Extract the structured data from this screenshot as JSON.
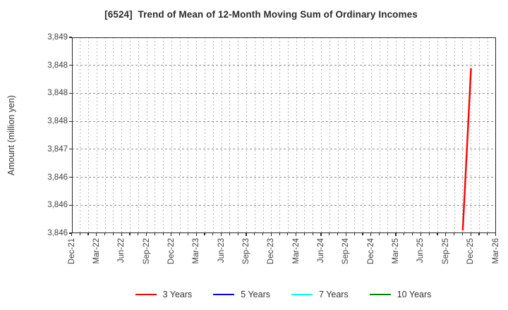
{
  "chart_data": {
    "type": "line",
    "title": "[6524]  Trend of Mean of 12-Month Moving Sum of Ordinary Incomes",
    "ylabel": "Amount (million yen)",
    "xlabel": "",
    "y_axis": {
      "min": 3845.5,
      "max": 3849.0,
      "tick_step": 0.5,
      "unit": "million yen"
    },
    "y_tick_labels": [
      "3,849",
      "3,848",
      "3,848",
      "3,848",
      "3,847",
      "3,846",
      "3,846",
      "3,846"
    ],
    "x_tick_labels": [
      "Dec-21",
      "Mar-22",
      "Jun-22",
      "Sep-22",
      "Dec-22",
      "Mar-23",
      "Jun-23",
      "Sep-23",
      "Dec-23",
      "Mar-24",
      "Jun-24",
      "Sep-24",
      "Dec-24",
      "Mar-25",
      "Jun-25",
      "Sep-25",
      "Dec-25",
      "Mar-26"
    ],
    "x_axis": {
      "start_month": "Dec-21",
      "end_month": "Mar-26",
      "total_months": 51,
      "label_interval_months": 3,
      "gridline_interval_months": 1
    },
    "grid": {
      "on": true,
      "horizontal_style": "dashed",
      "vertical_style": "dotted",
      "color": "#9a9a9a"
    },
    "legend": {
      "position": "bottom",
      "entries": [
        {
          "label": "3 Years",
          "color": "#ff0000"
        },
        {
          "label": "5 Years",
          "color": "#0000ff"
        },
        {
          "label": "7 Years",
          "color": "#00ffff"
        },
        {
          "label": "10 Years",
          "color": "#008000"
        }
      ]
    },
    "series": [
      {
        "name": "3 Years",
        "color": "#ff0000",
        "points": [
          {
            "x": "Nov-25",
            "y": 3845.55
          },
          {
            "x": "Dec-25",
            "y": 3848.45
          }
        ]
      },
      {
        "name": "5 Years",
        "color": "#0000ff",
        "points": []
      },
      {
        "name": "7 Years",
        "color": "#00ffff",
        "points": []
      },
      {
        "name": "10 Years",
        "color": "#008000",
        "points": []
      }
    ]
  }
}
